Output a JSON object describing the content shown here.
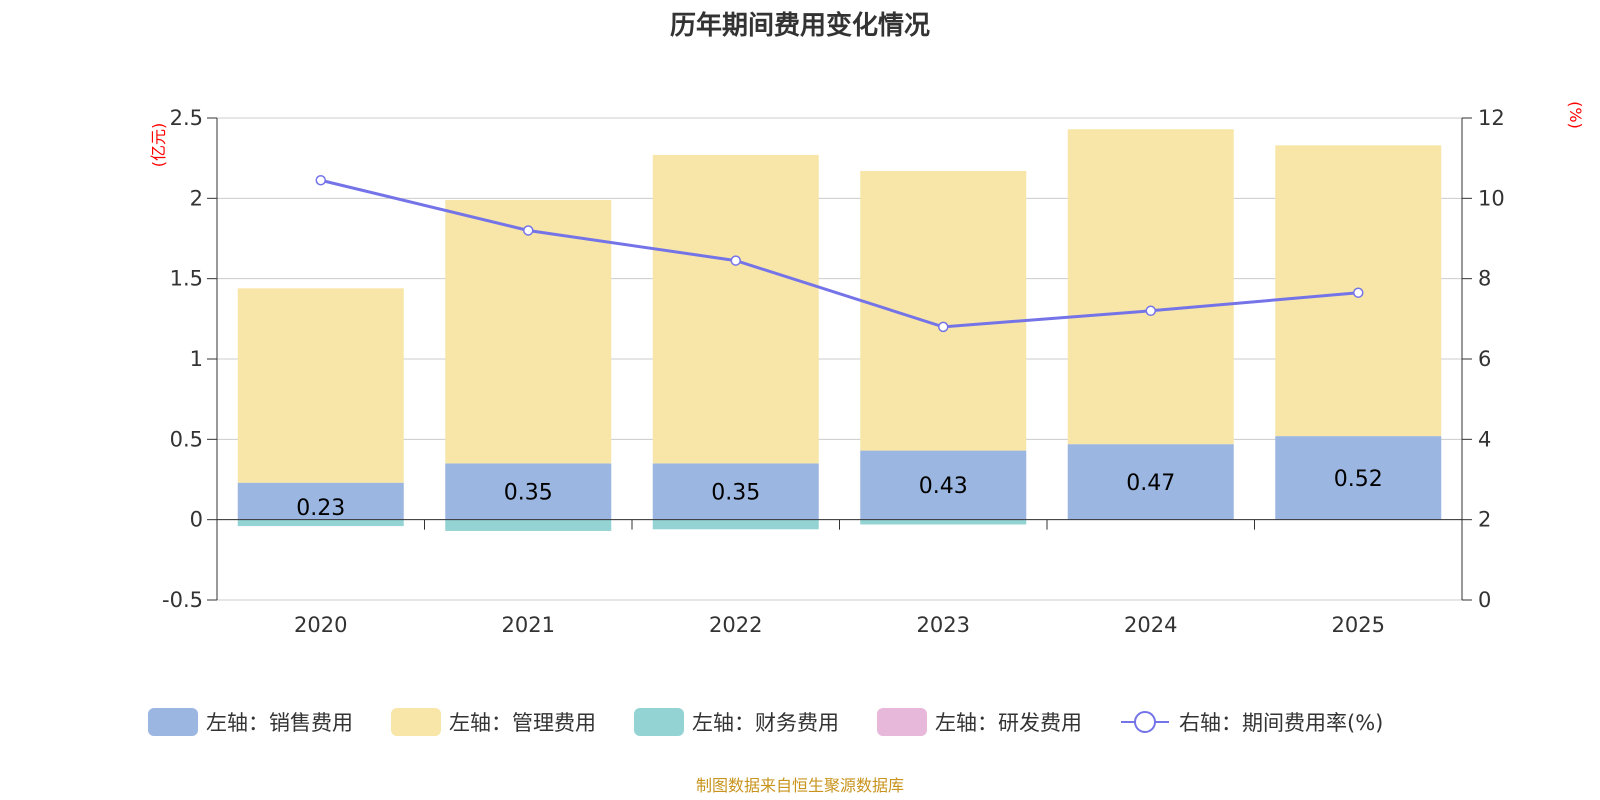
{
  "chart_data": {
    "type": "bar",
    "title": "历年期间费用变化情况",
    "categories": [
      "2020",
      "2021",
      "2022",
      "2023",
      "2024",
      "2025"
    ],
    "left_axis": {
      "unit": "(亿元)",
      "min": -0.5,
      "max": 2.5,
      "ticks": [
        "-0.5",
        "0",
        "0.5",
        "1",
        "1.5",
        "2",
        "2.5"
      ]
    },
    "right_axis": {
      "unit": "(%)",
      "min": 0,
      "max": 12,
      "ticks": [
        "0",
        "2",
        "4",
        "6",
        "8",
        "10",
        "12"
      ]
    },
    "series": [
      {
        "name": "左轴：销售费用",
        "kind": "bar",
        "color": "#9bb6e0",
        "values": [
          0.23,
          0.35,
          0.35,
          0.43,
          0.47,
          0.52
        ],
        "labels": [
          "0.23",
          "0.35",
          "0.35",
          "0.43",
          "0.47",
          "0.52"
        ]
      },
      {
        "name": "左轴：管理费用",
        "kind": "bar",
        "color": "#f7e6a7",
        "values": [
          1.21,
          1.64,
          1.92,
          1.74,
          1.96,
          1.81
        ]
      },
      {
        "name": "左轴：财务费用",
        "kind": "bar",
        "color": "#93d3d3",
        "values": [
          -0.04,
          -0.07,
          -0.06,
          -0.03,
          0.0,
          0.0
        ]
      },
      {
        "name": "左轴：研发费用",
        "kind": "bar",
        "color": "#e8b8da",
        "values": [
          0,
          0,
          0,
          0,
          0,
          0
        ]
      },
      {
        "name": "右轴：期间费用率(%)",
        "kind": "line",
        "color": "#7474e8",
        "values": [
          10.45,
          9.2,
          8.45,
          6.8,
          7.2,
          7.65
        ]
      }
    ]
  },
  "source_text": "制图数据来自恒生聚源数据库"
}
